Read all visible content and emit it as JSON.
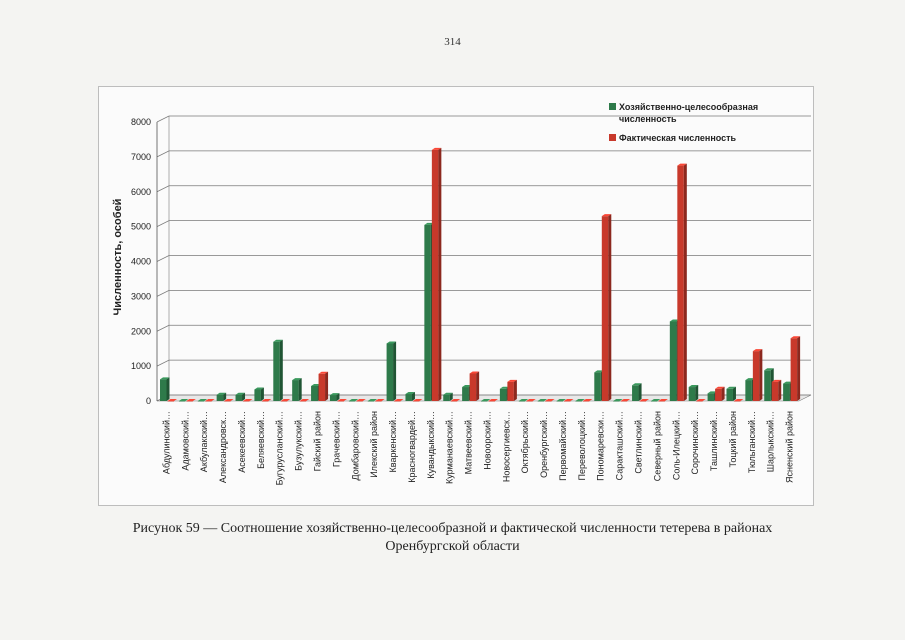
{
  "page": {
    "number": "314"
  },
  "caption": {
    "line1": "Рисунок 59 — Соотношение хозяйственно-целесообразной и фактической численности тетерева в районах",
    "line2": "Оренбургской области"
  },
  "colors": {
    "series1": "#2e7a4a",
    "series2": "#c8392b",
    "grid": "#7a7a7a"
  },
  "chart_data": {
    "type": "bar",
    "title": "",
    "xlabel": "",
    "ylabel": "Численность, особей",
    "ylim": [
      0,
      8000
    ],
    "yticks": [
      "0",
      "1000",
      "2000",
      "3000",
      "4000",
      "5000",
      "6000",
      "7000",
      "8000"
    ],
    "grid": true,
    "legend_position": "top-right",
    "categories": [
      "Абдулинский…",
      "Адамовский…",
      "Акбулакский…",
      "Александровск…",
      "Асекеевский…",
      "Беляевский…",
      "Бугурусланский…",
      "Бузулукский…",
      "Гайский район",
      "Грачевский…",
      "Домбаровский…",
      "Илекский район",
      "Кваркенский…",
      "Красногвардей…",
      "Кувандыкский…",
      "Курманаевский…",
      "Матвеевский…",
      "Новоорский…",
      "Новосергиевск…",
      "Октябрьский…",
      "Оренбургский…",
      "Первомайский…",
      "Переволоцкий…",
      "Пономаревски…",
      "Саракташский…",
      "Светлинский…",
      "Северный район",
      "Соль-Илецкий…",
      "Сорочинский…",
      "Ташлинский…",
      "Тоцкий район",
      "Тюльганский…",
      "Шарлыкский…",
      "Ясненский район"
    ],
    "series": [
      {
        "name": "Хозяйственно-целесообразная численность",
        "values": [
          620,
          0,
          0,
          180,
          180,
          330,
          1700,
          600,
          430,
          170,
          0,
          0,
          1650,
          200,
          5050,
          180,
          400,
          0,
          350,
          0,
          0,
          0,
          0,
          820,
          0,
          450,
          0,
          2280,
          400,
          220,
          350,
          600,
          880,
          500
        ]
      },
      {
        "name": "Фактическая численность",
        "values": [
          0,
          0,
          0,
          0,
          0,
          0,
          0,
          0,
          780,
          0,
          0,
          0,
          0,
          0,
          7200,
          0,
          790,
          0,
          550,
          0,
          0,
          0,
          0,
          5300,
          0,
          0,
          0,
          6750,
          0,
          350,
          0,
          1430,
          550,
          1800
        ]
      }
    ]
  }
}
